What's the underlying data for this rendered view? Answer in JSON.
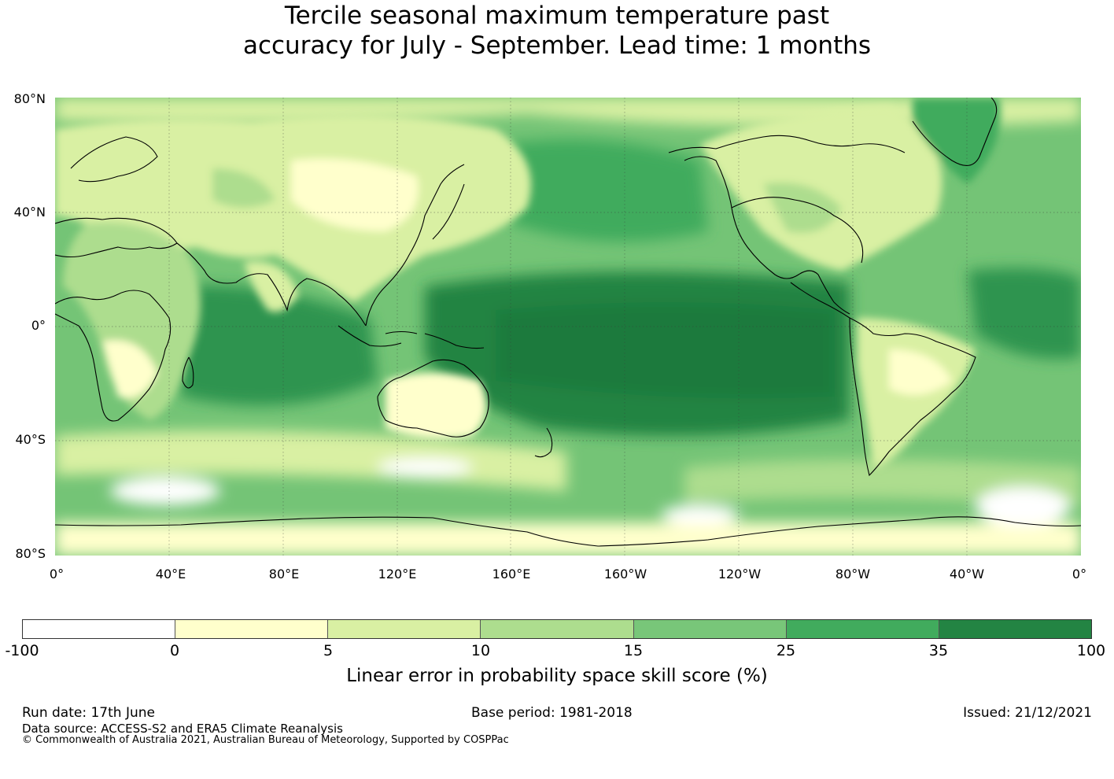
{
  "title": {
    "line1": "Tercile seasonal maximum temperature past",
    "line2": "accuracy for July - September. Lead time: 1 months"
  },
  "map": {
    "lat_labels": [
      "80°N",
      "40°N",
      "0°",
      "40°S",
      "80°S"
    ],
    "lon_labels": [
      "0°",
      "40°E",
      "80°E",
      "120°E",
      "160°E",
      "160°W",
      "120°W",
      "80°W",
      "40°W",
      "0°"
    ],
    "ocean_base_color": "#74c476",
    "land_base_color": "#d9f0a3",
    "coastline_color": "#000000"
  },
  "colorbar": {
    "ticks": [
      "-100",
      "0",
      "5",
      "10",
      "15",
      "25",
      "35",
      "100"
    ],
    "colors": [
      "#ffffff",
      "#ffffcc",
      "#d9f0a3",
      "#addd8e",
      "#78c679",
      "#41ab5d",
      "#238443"
    ],
    "label": "Linear error in probability space skill score (%)"
  },
  "footer": {
    "run_date": "Run date: 17th June",
    "base_period": "Base period: 1981-2018",
    "issued": "Issued: 21/12/2021",
    "data_source": "Data source: ACCESS-S2 and ERA5 Climate Reanalysis",
    "copyright": "© Commonwealth of Australia 2021, Australian Bureau of Meteorology, Supported by COSPPac"
  }
}
